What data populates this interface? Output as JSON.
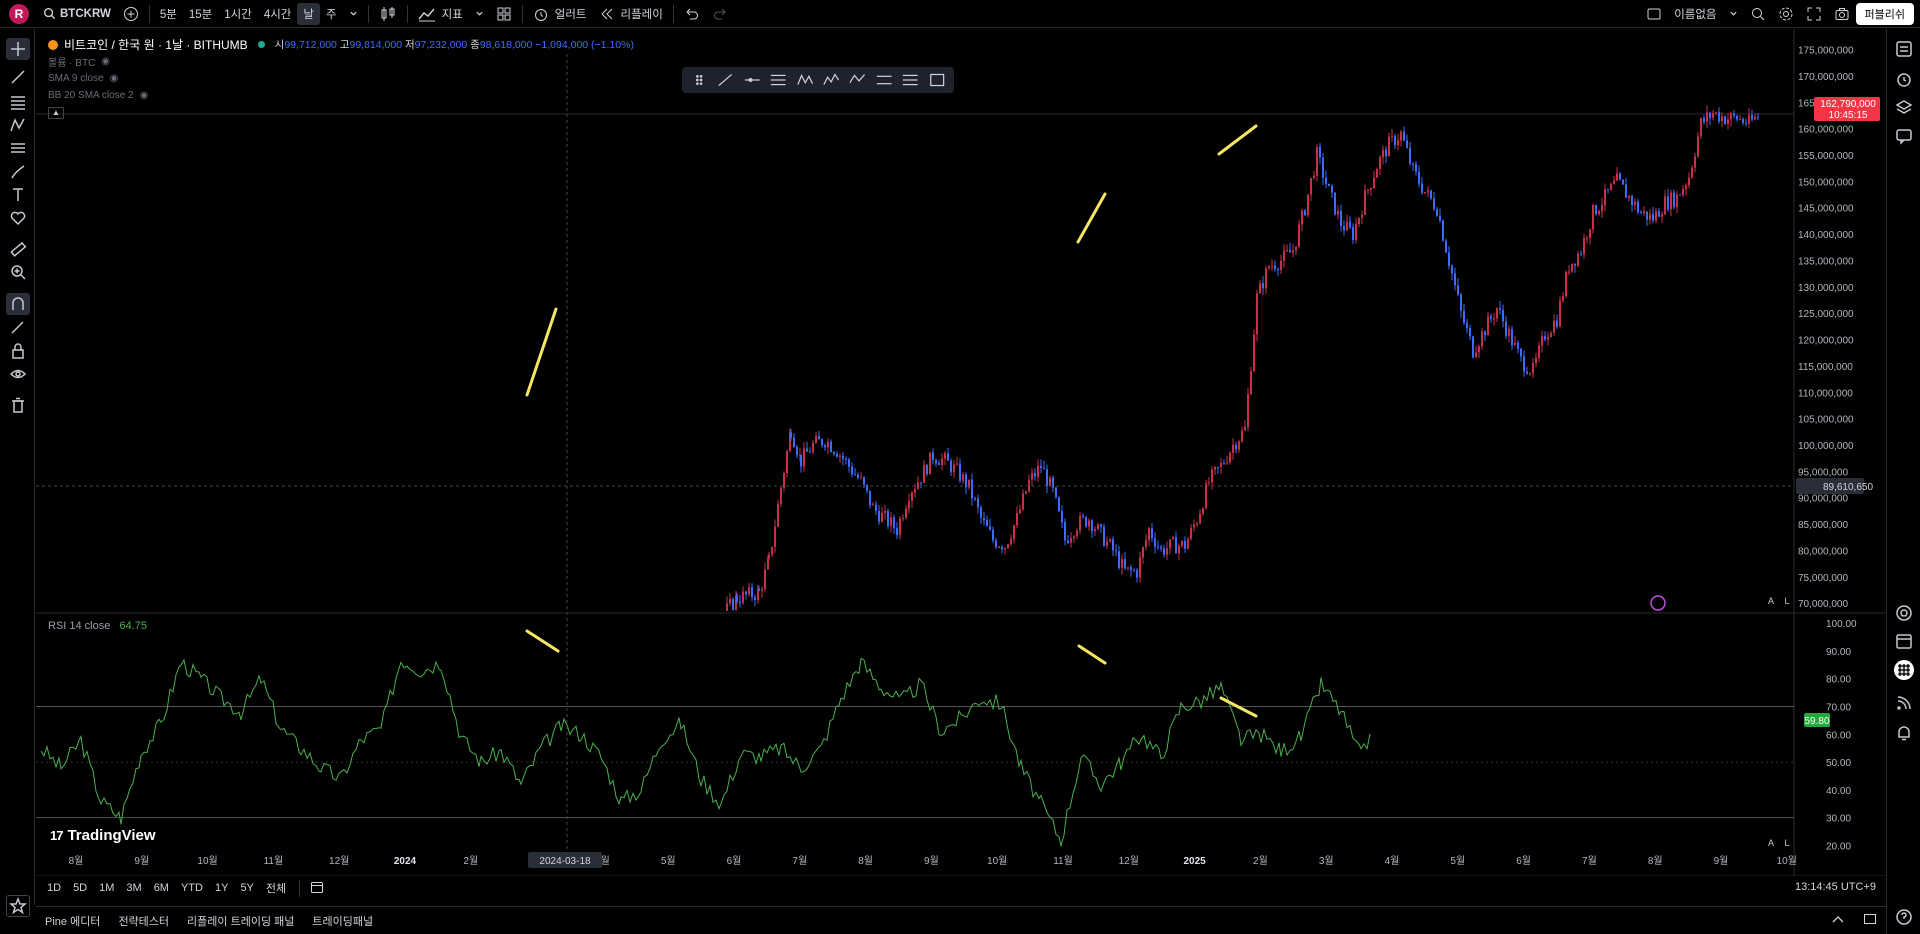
{
  "topbar": {
    "avatar": "R",
    "symbol": "BTCKRW",
    "timeframes": [
      "5분",
      "15분",
      "1시간",
      "4시간",
      "날",
      "주"
    ],
    "active_timeframe": "날",
    "indicators_label": "지표",
    "alert_label": "얼러트",
    "replay_label": "리플레이",
    "layout_name": "이름없음",
    "publish_label": "퍼블리쉬"
  },
  "legend": {
    "title": "비트코인 / 한국 원 · 1날 · BITHUMB",
    "o_label": "시",
    "o": "99,712,000",
    "h_label": "고",
    "h": "99,814,000",
    "l_label": "저",
    "l": "97,232,000",
    "c_label": "종",
    "c": "98,618,000",
    "change": "−1,094,000 (−1.10%)",
    "volume": "볼륨 · BTC",
    "sma": "SMA 9 close",
    "bb": "BB 20 SMA close 2"
  },
  "rsi": {
    "label": "RSI 14 close",
    "value": "64.75",
    "last_badge": "59.80",
    "levels": [
      "100.00",
      "90.00",
      "80.00",
      "70.00",
      "60.00",
      "50.00",
      "40.00",
      "30.00",
      "20.00"
    ]
  },
  "price_axis": {
    "labels": [
      "175,000,000",
      "170,000,000",
      "165,000,000",
      "160,000,000",
      "155,000,000",
      "150,000,000",
      "145,000,000",
      "140,000,000",
      "135,000,000",
      "130,000,000",
      "125,000,000",
      "120,000,000",
      "115,000,000",
      "110,000,000",
      "105,000,000",
      "100,000,000",
      "95,000,000",
      "90,000,000",
      "85,000,000",
      "80,000,000",
      "75,000,000",
      "70,000,000"
    ],
    "last_price": "162,790,000",
    "countdown": "10:45:15",
    "crosshair_price": "89,610,650"
  },
  "time_axis": {
    "labels": [
      "8월",
      "9월",
      "10월",
      "11월",
      "12월",
      "2024",
      "2월",
      "3월",
      "4월",
      "5월",
      "6월",
      "7월",
      "8월",
      "9월",
      "10월",
      "11월",
      "12월",
      "2025",
      "2월",
      "3월",
      "4월",
      "5월",
      "6월",
      "7월",
      "8월",
      "9월",
      "10월"
    ],
    "crosshair_date": "2024-03-18"
  },
  "bottom_timeframes": [
    "1D",
    "5D",
    "1M",
    "3M",
    "6M",
    "YTD",
    "1Y",
    "5Y",
    "전체"
  ],
  "clock": "13:14:45 UTC+9",
  "bottom_panel": [
    "Pine 에디터",
    "전략테스터",
    "리플레이 트레이딩 패널",
    "트레이딩패널"
  ],
  "branding": "TradingView",
  "colors": {
    "accent": "#f5e663",
    "rsi_line": "#4caf50",
    "last_price_bg": "#f23645",
    "candle_up": "#c8304a",
    "candle_down": "#3d6bff"
  },
  "chart_data": {
    "type": "candlestick",
    "symbol": "BTCKRW",
    "ylim": [
      67000000,
      177000000
    ],
    "series": [
      {
        "name": "close",
        "values": [
          [
            0,
            55
          ],
          [
            22,
            52
          ],
          [
            44,
            58
          ],
          [
            66,
            62
          ],
          [
            88,
            57
          ],
          [
            110,
            54
          ],
          [
            132,
            49
          ],
          [
            154,
            52
          ],
          [
            176,
            57
          ],
          [
            198,
            61
          ],
          [
            220,
            66
          ],
          [
            242,
            71
          ],
          [
            264,
            72
          ],
          [
            274,
            78
          ],
          [
            286,
            92
          ],
          [
            296,
            103
          ],
          [
            306,
            97
          ],
          [
            318,
            100
          ],
          [
            330,
            101
          ],
          [
            342,
            99
          ],
          [
            354,
            96
          ],
          [
            366,
            93
          ],
          [
            378,
            88
          ],
          [
            390,
            86
          ],
          [
            402,
            84
          ],
          [
            414,
            91
          ],
          [
            426,
            94
          ],
          [
            438,
            98
          ],
          [
            450,
            97
          ],
          [
            462,
            95
          ],
          [
            474,
            92
          ],
          [
            486,
            86
          ],
          [
            498,
            82
          ],
          [
            510,
            81
          ],
          [
            522,
            86
          ],
          [
            534,
            93
          ],
          [
            546,
            96
          ],
          [
            558,
            91
          ],
          [
            570,
            82
          ],
          [
            582,
            85
          ],
          [
            594,
            86
          ],
          [
            606,
            83
          ],
          [
            618,
            80
          ],
          [
            630,
            76
          ],
          [
            642,
            76
          ],
          [
            654,
            84
          ],
          [
            666,
            80
          ],
          [
            678,
            81
          ],
          [
            690,
            81
          ],
          [
            702,
            86
          ],
          [
            714,
            93
          ],
          [
            726,
            96
          ],
          [
            738,
            100
          ],
          [
            750,
            103
          ],
          [
            762,
            128
          ],
          [
            774,
            134
          ],
          [
            786,
            135
          ],
          [
            798,
            137
          ],
          [
            810,
            145
          ],
          [
            822,
            155
          ],
          [
            834,
            148
          ],
          [
            846,
            142
          ],
          [
            858,
            140
          ],
          [
            870,
            147
          ],
          [
            882,
            153
          ],
          [
            894,
            157
          ],
          [
            906,
            159
          ],
          [
            918,
            152
          ],
          [
            930,
            148
          ],
          [
            942,
            145
          ],
          [
            954,
            135
          ],
          [
            966,
            125
          ],
          [
            978,
            118
          ],
          [
            990,
            122
          ],
          [
            1002,
            126
          ],
          [
            1014,
            121
          ],
          [
            1026,
            116
          ],
          [
            1038,
            114
          ],
          [
            1050,
            121
          ],
          [
            1062,
            124
          ],
          [
            1074,
            134
          ],
          [
            1086,
            137
          ],
          [
            1098,
            144
          ],
          [
            1110,
            147
          ],
          [
            1122,
            150
          ],
          [
            1134,
            147
          ],
          [
            1146,
            144
          ],
          [
            1158,
            143
          ],
          [
            1170,
            146
          ],
          [
            1182,
            147
          ],
          [
            1194,
            151
          ],
          [
            1206,
            161
          ],
          [
            1218,
            163
          ],
          [
            1230,
            162
          ],
          [
            1242,
            162
          ],
          [
            1254,
            161
          ],
          [
            1266,
            162.8
          ]
        ]
      }
    ],
    "rsi": [
      [
        0,
        55
      ],
      [
        20,
        48
      ],
      [
        40,
        58
      ],
      [
        60,
        36
      ],
      [
        80,
        30
      ],
      [
        100,
        53
      ],
      [
        120,
        64
      ],
      [
        140,
        86
      ],
      [
        160,
        80
      ],
      [
        180,
        73
      ],
      [
        200,
        68
      ],
      [
        220,
        80
      ],
      [
        240,
        62
      ],
      [
        260,
        55
      ],
      [
        280,
        48
      ],
      [
        300,
        44
      ],
      [
        320,
        58
      ],
      [
        340,
        62
      ],
      [
        360,
        87
      ],
      [
        380,
        83
      ],
      [
        400,
        86
      ],
      [
        420,
        59
      ],
      [
        440,
        50
      ],
      [
        460,
        54
      ],
      [
        480,
        42
      ],
      [
        500,
        55
      ],
      [
        520,
        63
      ],
      [
        540,
        60
      ],
      [
        560,
        52
      ],
      [
        580,
        36
      ],
      [
        600,
        40
      ],
      [
        620,
        58
      ],
      [
        640,
        64
      ],
      [
        660,
        44
      ],
      [
        680,
        35
      ],
      [
        700,
        53
      ],
      [
        720,
        52
      ],
      [
        740,
        55
      ],
      [
        760,
        48
      ],
      [
        780,
        55
      ],
      [
        800,
        73
      ],
      [
        820,
        86
      ],
      [
        840,
        77
      ],
      [
        860,
        72
      ],
      [
        880,
        78
      ],
      [
        900,
        61
      ],
      [
        920,
        66
      ],
      [
        940,
        73
      ],
      [
        960,
        71
      ],
      [
        980,
        48
      ],
      [
        1000,
        35
      ],
      [
        1020,
        22
      ],
      [
        1040,
        52
      ],
      [
        1060,
        42
      ],
      [
        1080,
        50
      ],
      [
        1100,
        60
      ],
      [
        1120,
        52
      ],
      [
        1140,
        70
      ],
      [
        1160,
        72
      ],
      [
        1180,
        77
      ],
      [
        1200,
        58
      ],
      [
        1220,
        60
      ],
      [
        1240,
        54
      ],
      [
        1260,
        59
      ],
      [
        1280,
        78
      ],
      [
        1300,
        68
      ],
      [
        1320,
        52
      ],
      [
        1330,
        59.8
      ]
    ]
  }
}
